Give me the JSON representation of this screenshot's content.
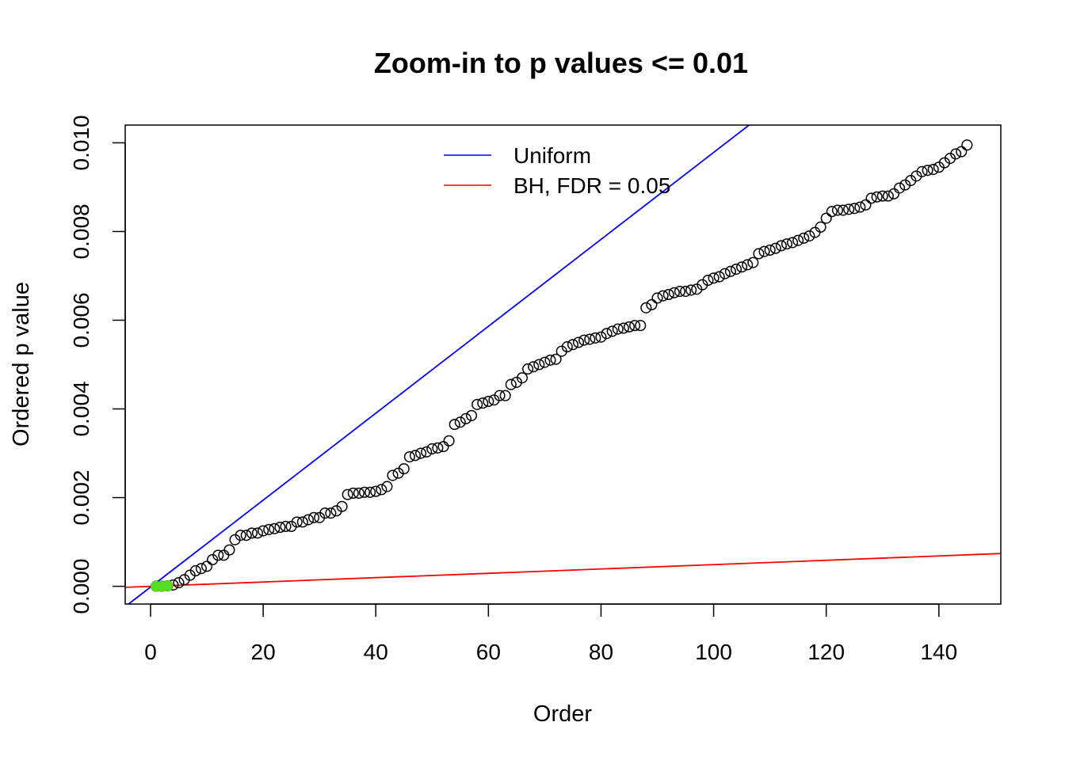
{
  "chart_data": {
    "type": "scatter",
    "title": "Zoom-in to p values <= 0.01",
    "xlabel": "Order",
    "ylabel": "Ordered p value",
    "xlim": [
      -4.5,
      151
    ],
    "ylim": [
      -0.0004,
      0.0104
    ],
    "x_ticks": [
      0,
      20,
      40,
      60,
      80,
      100,
      120,
      140
    ],
    "y_ticks": [
      0.0,
      0.002,
      0.004,
      0.006,
      0.008,
      0.01
    ],
    "x_tick_labels": [
      "0",
      "20",
      "40",
      "60",
      "80",
      "100",
      "120",
      "140"
    ],
    "y_tick_labels": [
      "0.000",
      "0.002",
      "0.004",
      "0.006",
      "0.008",
      "0.010"
    ],
    "grid": false,
    "legend_position": "top-center",
    "colors": {
      "uniform": "#0000ff",
      "bh": "#ff0000",
      "significant": "#55dd22",
      "points": "#000000"
    },
    "lines": [
      {
        "name": "Uniform",
        "color": "#0000ff",
        "slope": 9.8e-05,
        "intercept": -1.72e-05
      },
      {
        "name": "BH, FDR = 0.05",
        "color": "#ff0000",
        "slope": 4.9e-06,
        "intercept": -1.2e-06
      }
    ],
    "significant_x": [
      1,
      2,
      3
    ],
    "series": [
      {
        "x": [
          1,
          2,
          3,
          4,
          5,
          6,
          7,
          8,
          9,
          10,
          11,
          12,
          13,
          14,
          15,
          16,
          17,
          18,
          19,
          20,
          21,
          22,
          23,
          24,
          25,
          26,
          27,
          28,
          29,
          30,
          31,
          32,
          33,
          34,
          35,
          36,
          37,
          38,
          39,
          40,
          41,
          42,
          43,
          44,
          45,
          46,
          47,
          48,
          49,
          50,
          51,
          52,
          53,
          54,
          55,
          56,
          57,
          58,
          59,
          60,
          61,
          62,
          63,
          64,
          65,
          66,
          67,
          68,
          69,
          70,
          71,
          72,
          73,
          74,
          75,
          76,
          77,
          78,
          79,
          80,
          81,
          82,
          83,
          84,
          85,
          86,
          87,
          88,
          89,
          90,
          91,
          92,
          93,
          94,
          95,
          96,
          97,
          98,
          99,
          100,
          101,
          102,
          103,
          104,
          105,
          106,
          107,
          108,
          109,
          110,
          111,
          112,
          113,
          114,
          115,
          116,
          117,
          118,
          119,
          120,
          121,
          122,
          123,
          124,
          125,
          126,
          127,
          128,
          129,
          130,
          131,
          132,
          133,
          134,
          135,
          136,
          137,
          138,
          139,
          140,
          141,
          142,
          143,
          144,
          145
        ],
        "y": [
          0.0,
          0.0,
          1e-05,
          3e-05,
          8e-05,
          0.00015,
          0.00025,
          0.00035,
          0.0004,
          0.00045,
          0.0006,
          0.0007,
          0.0007,
          0.00082,
          0.00105,
          0.00115,
          0.00115,
          0.0012,
          0.0012,
          0.00125,
          0.00128,
          0.0013,
          0.00133,
          0.00135,
          0.00135,
          0.00145,
          0.00145,
          0.0015,
          0.00155,
          0.00155,
          0.00165,
          0.00165,
          0.0017,
          0.0018,
          0.00207,
          0.0021,
          0.0021,
          0.00212,
          0.00212,
          0.00214,
          0.00218,
          0.00225,
          0.0025,
          0.00255,
          0.00265,
          0.00292,
          0.00295,
          0.003,
          0.00303,
          0.0031,
          0.00312,
          0.00315,
          0.00328,
          0.00365,
          0.0037,
          0.00378,
          0.00385,
          0.0041,
          0.00413,
          0.00417,
          0.0042,
          0.0043,
          0.0043,
          0.00455,
          0.0046,
          0.0047,
          0.0049,
          0.00495,
          0.005,
          0.00505,
          0.0051,
          0.00512,
          0.0053,
          0.0054,
          0.00545,
          0.0055,
          0.00555,
          0.00557,
          0.0056,
          0.00562,
          0.0057,
          0.00575,
          0.0058,
          0.00582,
          0.00585,
          0.00588,
          0.00588,
          0.00628,
          0.00635,
          0.0065,
          0.00655,
          0.00658,
          0.00662,
          0.00665,
          0.00665,
          0.00668,
          0.0067,
          0.0068,
          0.0069,
          0.00695,
          0.00698,
          0.00705,
          0.0071,
          0.00715,
          0.0072,
          0.00725,
          0.0073,
          0.0075,
          0.00755,
          0.00758,
          0.00762,
          0.00768,
          0.00772,
          0.00775,
          0.0078,
          0.00785,
          0.0079,
          0.00798,
          0.0081,
          0.0083,
          0.00845,
          0.00848,
          0.00848,
          0.0085,
          0.00852,
          0.00855,
          0.0086,
          0.00875,
          0.00878,
          0.0088,
          0.0088,
          0.00885,
          0.00898,
          0.00905,
          0.00915,
          0.00925,
          0.00935,
          0.00938,
          0.0094,
          0.00945,
          0.00955,
          0.00965,
          0.00975,
          0.0098,
          0.00995
        ]
      }
    ]
  }
}
